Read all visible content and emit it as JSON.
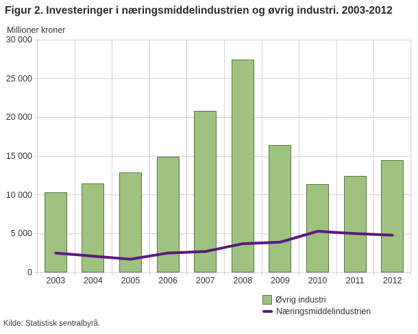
{
  "figure": {
    "title": "Figur 2. Investeringer i næringsmiddelindustrien og øvrig industri. 2003-2012",
    "y_axis_title": "Millioner kroner",
    "source": "Kilde: Statistisk sentralbyrå."
  },
  "colors": {
    "background": "#ffffff",
    "title_text": "#2b2b2b",
    "axis_text": "#333333",
    "grid": "#d4d4d4",
    "bar_fill": "#9dc37e",
    "bar_border": "#5d7149",
    "line": "#591a82"
  },
  "legend": {
    "items": [
      {
        "label": "Øvrig industri",
        "marker": "square"
      },
      {
        "label": "Næringsmiddelindustrien",
        "marker": "line"
      }
    ]
  },
  "chart_data": {
    "type": "combo",
    "categories": [
      "2003",
      "2004",
      "2005",
      "2006",
      "2007",
      "2008",
      "2009",
      "2010",
      "2011",
      "2012"
    ],
    "series": [
      {
        "name": "Øvrig industri",
        "type": "bar",
        "values": [
          10300,
          11500,
          12900,
          14900,
          20800,
          27400,
          16400,
          11400,
          12400,
          14500
        ]
      },
      {
        "name": "Næringsmiddelindustrien",
        "type": "line",
        "values": [
          2500,
          2100,
          1700,
          2500,
          2700,
          3700,
          3900,
          5300,
          5000,
          4800
        ]
      }
    ],
    "title": "Figur 2. Investeringer i næringsmiddelindustrien og øvrig industri. 2003-2012",
    "xlabel": "",
    "ylabel": "Millioner kroner",
    "ylim": [
      0,
      30000
    ],
    "ytick_interval": 5000,
    "ytick_labels": [
      "0",
      "5 000",
      "10 000",
      "15 000",
      "20 000",
      "25 000",
      "30 000"
    ],
    "grid": true,
    "legend_position": "bottom-right"
  }
}
